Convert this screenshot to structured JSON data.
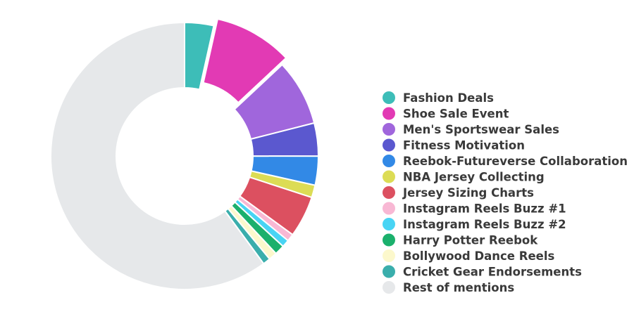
{
  "chart_data": {
    "type": "pie",
    "variant": "donut",
    "legend_position": "right",
    "slices": [
      {
        "label": "Fashion Deals",
        "value": 3.5,
        "color": "#3dbdb8",
        "exploded": false
      },
      {
        "label": "Shoe Sale Event",
        "value": 9.5,
        "color": "#e23ab4",
        "exploded": true
      },
      {
        "label": "Men's Sportswear Sales",
        "value": 8.0,
        "color": "#a066dc",
        "exploded": false
      },
      {
        "label": "Fitness Motivation",
        "value": 4.0,
        "color": "#5b58cf",
        "exploded": false
      },
      {
        "label": "Reebok-Futureverse Collaboration",
        "value": 3.5,
        "color": "#3289e6",
        "exploded": false
      },
      {
        "label": "NBA Jersey Collecting",
        "value": 1.5,
        "color": "#dcdc55",
        "exploded": false
      },
      {
        "label": "Jersey Sizing Charts",
        "value": 5.0,
        "color": "#dc5060",
        "exploded": false
      },
      {
        "label": "Instagram Reels Buzz #1",
        "value": 0.9,
        "color": "#f8b8d4",
        "exploded": false
      },
      {
        "label": "Instagram Reels Buzz #2",
        "value": 0.9,
        "color": "#48d4f4",
        "exploded": false
      },
      {
        "label": "Harry Potter Reebok",
        "value": 1.2,
        "color": "#1bb06c",
        "exploded": false
      },
      {
        "label": "Bollywood Dance Reels",
        "value": 1.0,
        "color": "#fcf8cc",
        "exploded": false
      },
      {
        "label": "Cricket Gear Endorsements",
        "value": 0.9,
        "color": "#3aaeac",
        "exploded": false
      },
      {
        "label": "Rest of mentions",
        "value": 60.0,
        "color": "#e6e8ea",
        "exploded": false
      }
    ]
  }
}
